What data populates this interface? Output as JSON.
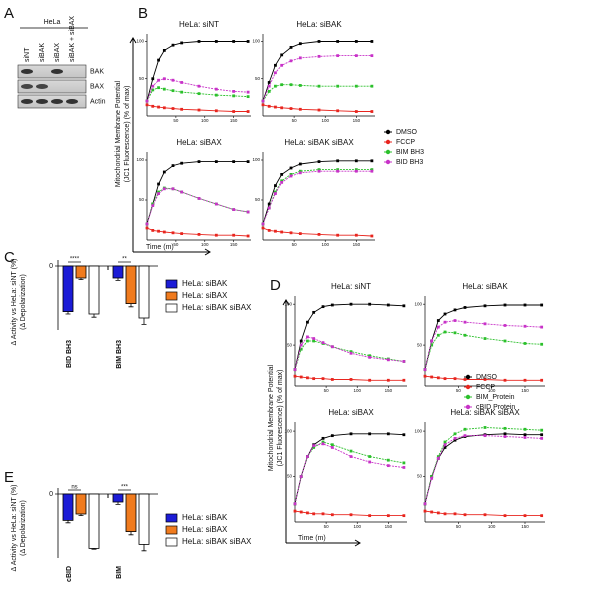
{
  "blot": {
    "panel": "A",
    "cell_line": "HeLa",
    "lanes": [
      "siNT",
      "siBAK",
      "siBAX",
      "siBAK + siBAX"
    ],
    "bands": [
      "BAK",
      "BAX",
      "Actin"
    ]
  },
  "chart_data": [
    {
      "type": "line",
      "panel": "B",
      "ylabel": [
        "Mitochondrial Membrane Potential",
        "(JC1 Fluorescence) (% of max)"
      ],
      "xlabel": "Time (m)",
      "x": [
        0,
        10,
        20,
        30,
        45,
        60,
        90,
        120,
        150,
        175
      ],
      "xlim": [
        0,
        180
      ],
      "xticks": [
        50,
        100,
        150
      ],
      "ylim": [
        0,
        110
      ],
      "yticks": [
        50,
        100
      ],
      "legend": [
        {
          "name": "DMSO",
          "color": "#000000"
        },
        {
          "name": "FCCP",
          "color": "#e8251e"
        },
        {
          "name": "BIM BH3",
          "color": "#2bc02b"
        },
        {
          "name": "BID BH3",
          "color": "#c832c8"
        }
      ],
      "subplots": [
        {
          "title": "HeLa: siNT",
          "series": [
            [
              20,
              50,
              75,
              88,
              95,
              98,
              100,
              100,
              100,
              100
            ],
            [
              15,
              13,
              12,
              11,
              10,
              9,
              8,
              7,
              6,
              6
            ],
            [
              20,
              35,
              38,
              36,
              34,
              32,
              30,
              28,
              27,
              26
            ],
            [
              20,
              40,
              48,
              50,
              48,
              45,
              40,
              36,
              33,
              32
            ]
          ]
        },
        {
          "title": "HeLa: siBAK",
          "series": [
            [
              20,
              45,
              68,
              82,
              92,
              97,
              100,
              100,
              100,
              100
            ],
            [
              15,
              13,
              12,
              11,
              10,
              9,
              8,
              7,
              6,
              6
            ],
            [
              20,
              33,
              40,
              42,
              42,
              41,
              40,
              40,
              40,
              40
            ],
            [
              20,
              40,
              58,
              68,
              74,
              78,
              80,
              81,
              81,
              81
            ]
          ]
        },
        {
          "title": "HeLa: siBAX",
          "series": [
            [
              20,
              45,
              70,
              85,
              93,
              96,
              98,
              98,
              98,
              98
            ],
            [
              15,
              12,
              11,
              10,
              9,
              8,
              7,
              6,
              6,
              5
            ],
            [
              20,
              45,
              60,
              65,
              64,
              60,
              52,
              45,
              38,
              35
            ],
            [
              20,
              43,
              58,
              64,
              64,
              60,
              52,
              45,
              38,
              35
            ]
          ]
        },
        {
          "title": "HeLa: siBAK siBAX",
          "series": [
            [
              20,
              45,
              68,
              82,
              90,
              95,
              98,
              99,
              99,
              99
            ],
            [
              15,
              12,
              11,
              10,
              9,
              8,
              7,
              6,
              6,
              5
            ],
            [
              20,
              40,
              60,
              74,
              82,
              86,
              88,
              88,
              88,
              88
            ],
            [
              20,
              40,
              58,
              72,
              80,
              84,
              86,
              86,
              86,
              86
            ]
          ]
        }
      ]
    },
    {
      "type": "bar",
      "panel": "C",
      "ylabel": [
        "Δ Activity vs HeLa: siNT (%)",
        "(Δ Depolarization)"
      ],
      "categories": [
        "BID BH3",
        "BIM BH3"
      ],
      "significance": [
        "****",
        "**"
      ],
      "ylim": [
        -80,
        0
      ],
      "yticks": [
        0
      ],
      "series": [
        {
          "name": "HeLa: siBAK",
          "color": "#1c1cd6",
          "values": [
            -57,
            -15
          ],
          "errors": [
            3,
            3
          ]
        },
        {
          "name": "HeLa: siBAX",
          "color": "#f07b1e",
          "values": [
            -15,
            -47
          ],
          "errors": [
            2,
            4
          ]
        },
        {
          "name": "HeLa: siBAK siBAX",
          "color": "#ffffff",
          "values": [
            -60,
            -65
          ],
          "errors": [
            4,
            8
          ]
        }
      ]
    },
    {
      "type": "line",
      "panel": "D",
      "ylabel": [
        "Mitochondrial Membrane Potential",
        "(JC1 Fluorescence) (% of max)"
      ],
      "xlabel": "Time (m)",
      "x": [
        0,
        10,
        20,
        30,
        45,
        60,
        90,
        120,
        150,
        175
      ],
      "xlim": [
        0,
        180
      ],
      "xticks": [
        50,
        100,
        150
      ],
      "ylim": [
        0,
        110
      ],
      "yticks": [
        50,
        100
      ],
      "legend": [
        {
          "name": "DMSO",
          "color": "#000000"
        },
        {
          "name": "FCCP",
          "color": "#e8251e"
        },
        {
          "name": "BIM_Protein",
          "color": "#2bc02b"
        },
        {
          "name": "cBID Protein",
          "color": "#c832c8"
        }
      ],
      "subplots": [
        {
          "title": "HeLa: siNT",
          "series": [
            [
              20,
              55,
              78,
              90,
              97,
              99,
              100,
              100,
              99,
              98
            ],
            [
              12,
              11,
              10,
              9,
              9,
              8,
              8,
              7,
              7,
              7
            ],
            [
              20,
              45,
              55,
              55,
              52,
              48,
              42,
              37,
              33,
              30
            ],
            [
              20,
              50,
              60,
              58,
              53,
              48,
              40,
              35,
              32,
              30
            ]
          ]
        },
        {
          "title": "HeLa: siBAK",
          "series": [
            [
              20,
              55,
              80,
              88,
              93,
              96,
              98,
              99,
              99,
              99
            ],
            [
              12,
              11,
              10,
              9,
              9,
              8,
              8,
              7,
              7,
              7
            ],
            [
              20,
              50,
              62,
              66,
              65,
              62,
              58,
              55,
              52,
              51
            ],
            [
              20,
              55,
              72,
              78,
              80,
              78,
              76,
              74,
              73,
              72
            ]
          ]
        },
        {
          "title": "HeLa: siBAX",
          "series": [
            [
              20,
              50,
              72,
              85,
              92,
              95,
              97,
              97,
              97,
              96
            ],
            [
              12,
              11,
              10,
              9,
              9,
              8,
              8,
              7,
              7,
              7
            ],
            [
              20,
              50,
              72,
              82,
              88,
              85,
              78,
              72,
              68,
              65
            ],
            [
              20,
              50,
              72,
              84,
              86,
              82,
              72,
              66,
              62,
              60
            ]
          ]
        },
        {
          "title": "HeLa: siBAK siBAX",
          "series": [
            [
              20,
              50,
              70,
              82,
              90,
              94,
              96,
              97,
              96,
              96
            ],
            [
              12,
              11,
              10,
              9,
              9,
              8,
              8,
              7,
              7,
              7
            ],
            [
              20,
              50,
              72,
              88,
              97,
              102,
              104,
              103,
              102,
              101
            ],
            [
              20,
              48,
              70,
              85,
              92,
              95,
              95,
              94,
              93,
              92
            ]
          ]
        }
      ]
    },
    {
      "type": "bar",
      "panel": "E",
      "ylabel": [
        "Δ Activity vs HeLa: siNT (%)",
        "(Δ Depolarization)"
      ],
      "categories": [
        "cBID",
        "BIM"
      ],
      "significance": [
        "ns",
        "***"
      ],
      "ylim": [
        -80,
        0
      ],
      "yticks": [
        0
      ],
      "series": [
        {
          "name": "HeLa: siBAK",
          "color": "#1c1cd6",
          "values": [
            -33,
            -10
          ],
          "errors": [
            3,
            3
          ]
        },
        {
          "name": "HeLa: siBAX",
          "color": "#f07b1e",
          "values": [
            -25,
            -47
          ],
          "errors": [
            2,
            4
          ]
        },
        {
          "name": "HeLa: siBAK siBAX",
          "color": "#ffffff",
          "values": [
            -68,
            -63
          ],
          "errors": [
            1,
            8
          ]
        }
      ]
    }
  ]
}
